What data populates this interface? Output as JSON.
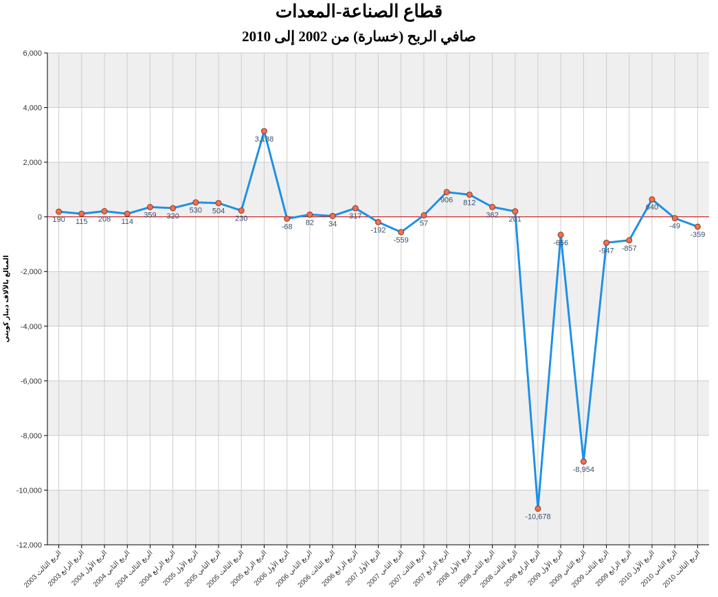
{
  "chart_data": {
    "type": "line",
    "title": "قطاع الصناعة-المعدات",
    "subtitle": "صافي الربح (خسارة) من 2002 إلى 2010",
    "ylabel": "المبالغ بالآلاف دينار كويتي",
    "xlabel": "",
    "ylim": [
      -12000,
      6000
    ],
    "yticks": [
      6000,
      4000,
      2000,
      0,
      -2000,
      -4000,
      -6000,
      -8000,
      -10000,
      -12000
    ],
    "ytick_labels": [
      "6,000",
      "4,000",
      "2,000",
      "0",
      "-2,000",
      "-4,000",
      "-6,000",
      "-8,000",
      "-10,000",
      "-12,000"
    ],
    "grid": true,
    "legend": "none",
    "categories": [
      "الربع الثالث 2003",
      "الربع الرابع 2003",
      "الربع الأول 2004",
      "الربع الثاني 2004",
      "الربع الثالث 2004",
      "الربع الرابع 2004",
      "الربع الأول 2005",
      "الربع الثاني 2005",
      "الربع الثالث 2005",
      "الربع الرابع 2005",
      "الربع الأول 2006",
      "الربع الثاني 2006",
      "الربع الثالث 2006",
      "الربع الرابع 2006",
      "الربع الأول 2007",
      "الربع الثاني 2007",
      "الربع الثالث 2007",
      "الربع الرابع 2007",
      "الربع الأول 2008",
      "الربع الثاني 2008",
      "الربع الثالث 2008",
      "الربع الرابع 2008",
      "الربع الأول 2009",
      "الربع الثاني 2009",
      "الربع الثالث 2009",
      "الربع الرابع 2009",
      "الربع الأول 2010",
      "الربع الثاني 2010",
      "الربع الثالث 2010"
    ],
    "values": [
      190,
      115,
      208,
      114,
      359,
      320,
      530,
      504,
      230,
      3138,
      -68,
      82,
      34,
      317,
      -192,
      -559,
      57,
      906,
      812,
      362,
      201,
      -10678,
      -656,
      -8954,
      -947,
      -857,
      640,
      -49,
      -359
    ],
    "data_labels": [
      "190",
      "115",
      "208",
      "114",
      "359",
      "320",
      "530",
      "504",
      "230",
      "3,138",
      "-68",
      "82",
      "34",
      "317",
      "-192",
      "-559",
      "57",
      "906",
      "812",
      "362",
      "201",
      "-10,678",
      "-656",
      "-8,954",
      "-947",
      "-857",
      "640",
      "-49",
      "-359"
    ],
    "colors": {
      "line": "#1e90e6",
      "marker_fill": "#f07050",
      "marker_stroke": "#8a3a20",
      "zero_line": "#cc0000",
      "band": "#efefef",
      "grid": "#cccccc",
      "data_label": "#35506e"
    }
  }
}
